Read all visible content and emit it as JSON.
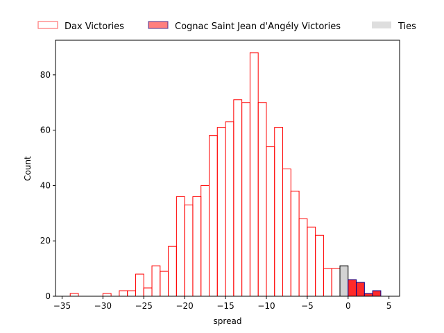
{
  "chart_data": {
    "type": "bar",
    "xlabel": "spread",
    "ylabel": "Count",
    "xlim": [
      -35.8,
      6.3
    ],
    "ylim": [
      0,
      92.5
    ],
    "bin_width": 1,
    "x_ticks": [
      -35,
      -30,
      -25,
      -20,
      -15,
      -10,
      -5,
      0,
      5
    ],
    "x_tick_labels": [
      "−35",
      "−30",
      "−25",
      "−20",
      "−15",
      "−10",
      "−5",
      "0",
      "5"
    ],
    "y_ticks": [
      0,
      20,
      40,
      60,
      80
    ],
    "y_tick_labels": [
      "0",
      "20",
      "40",
      "60",
      "80"
    ],
    "legend": {
      "placement": "top, outside plot",
      "entries": [
        {
          "label": "Dax Victories",
          "color": "#ff0000",
          "style": "outline"
        },
        {
          "label": "Cognac Saint Jean d'Angély Victories",
          "color": "#ff0000",
          "edge": "#00008b",
          "style": "filled"
        },
        {
          "label": "Ties",
          "color": "#d3d3d3",
          "style": "filled"
        }
      ]
    },
    "series": [
      {
        "name": "Dax Victories",
        "face": "none",
        "edge": "#ff0000",
        "bins": [
          {
            "x": -33.5,
            "count": 1
          },
          {
            "x": -29.5,
            "count": 1
          },
          {
            "x": -27.5,
            "count": 2
          },
          {
            "x": -26.5,
            "count": 2
          },
          {
            "x": -25.5,
            "count": 8
          },
          {
            "x": -24.5,
            "count": 3
          },
          {
            "x": -23.5,
            "count": 11
          },
          {
            "x": -22.5,
            "count": 9
          },
          {
            "x": -21.5,
            "count": 18
          },
          {
            "x": -20.5,
            "count": 36
          },
          {
            "x": -19.5,
            "count": 33
          },
          {
            "x": -18.5,
            "count": 36
          },
          {
            "x": -17.5,
            "count": 40
          },
          {
            "x": -16.5,
            "count": 58
          },
          {
            "x": -15.5,
            "count": 61
          },
          {
            "x": -14.5,
            "count": 63
          },
          {
            "x": -13.5,
            "count": 71
          },
          {
            "x": -12.5,
            "count": 70
          },
          {
            "x": -11.5,
            "count": 88
          },
          {
            "x": -10.5,
            "count": 70
          },
          {
            "x": -9.5,
            "count": 54
          },
          {
            "x": -8.5,
            "count": 61
          },
          {
            "x": -7.5,
            "count": 46
          },
          {
            "x": -6.5,
            "count": 38
          },
          {
            "x": -5.5,
            "count": 28
          },
          {
            "x": -4.5,
            "count": 25
          },
          {
            "x": -3.5,
            "count": 22
          },
          {
            "x": -2.5,
            "count": 10
          },
          {
            "x": -1.5,
            "count": 10
          }
        ]
      },
      {
        "name": "Ties",
        "face": "#d3d3d3",
        "edge": "#000000",
        "bins": [
          {
            "x": -0.5,
            "count": 11
          }
        ]
      },
      {
        "name": "Cognac Saint Jean d'Angély Victories",
        "face": "#ff2a2a",
        "edge": "#00008b",
        "bins": [
          {
            "x": 0.5,
            "count": 6
          },
          {
            "x": 1.5,
            "count": 5
          },
          {
            "x": 2.5,
            "count": 1
          },
          {
            "x": 3.5,
            "count": 2
          }
        ]
      }
    ]
  }
}
